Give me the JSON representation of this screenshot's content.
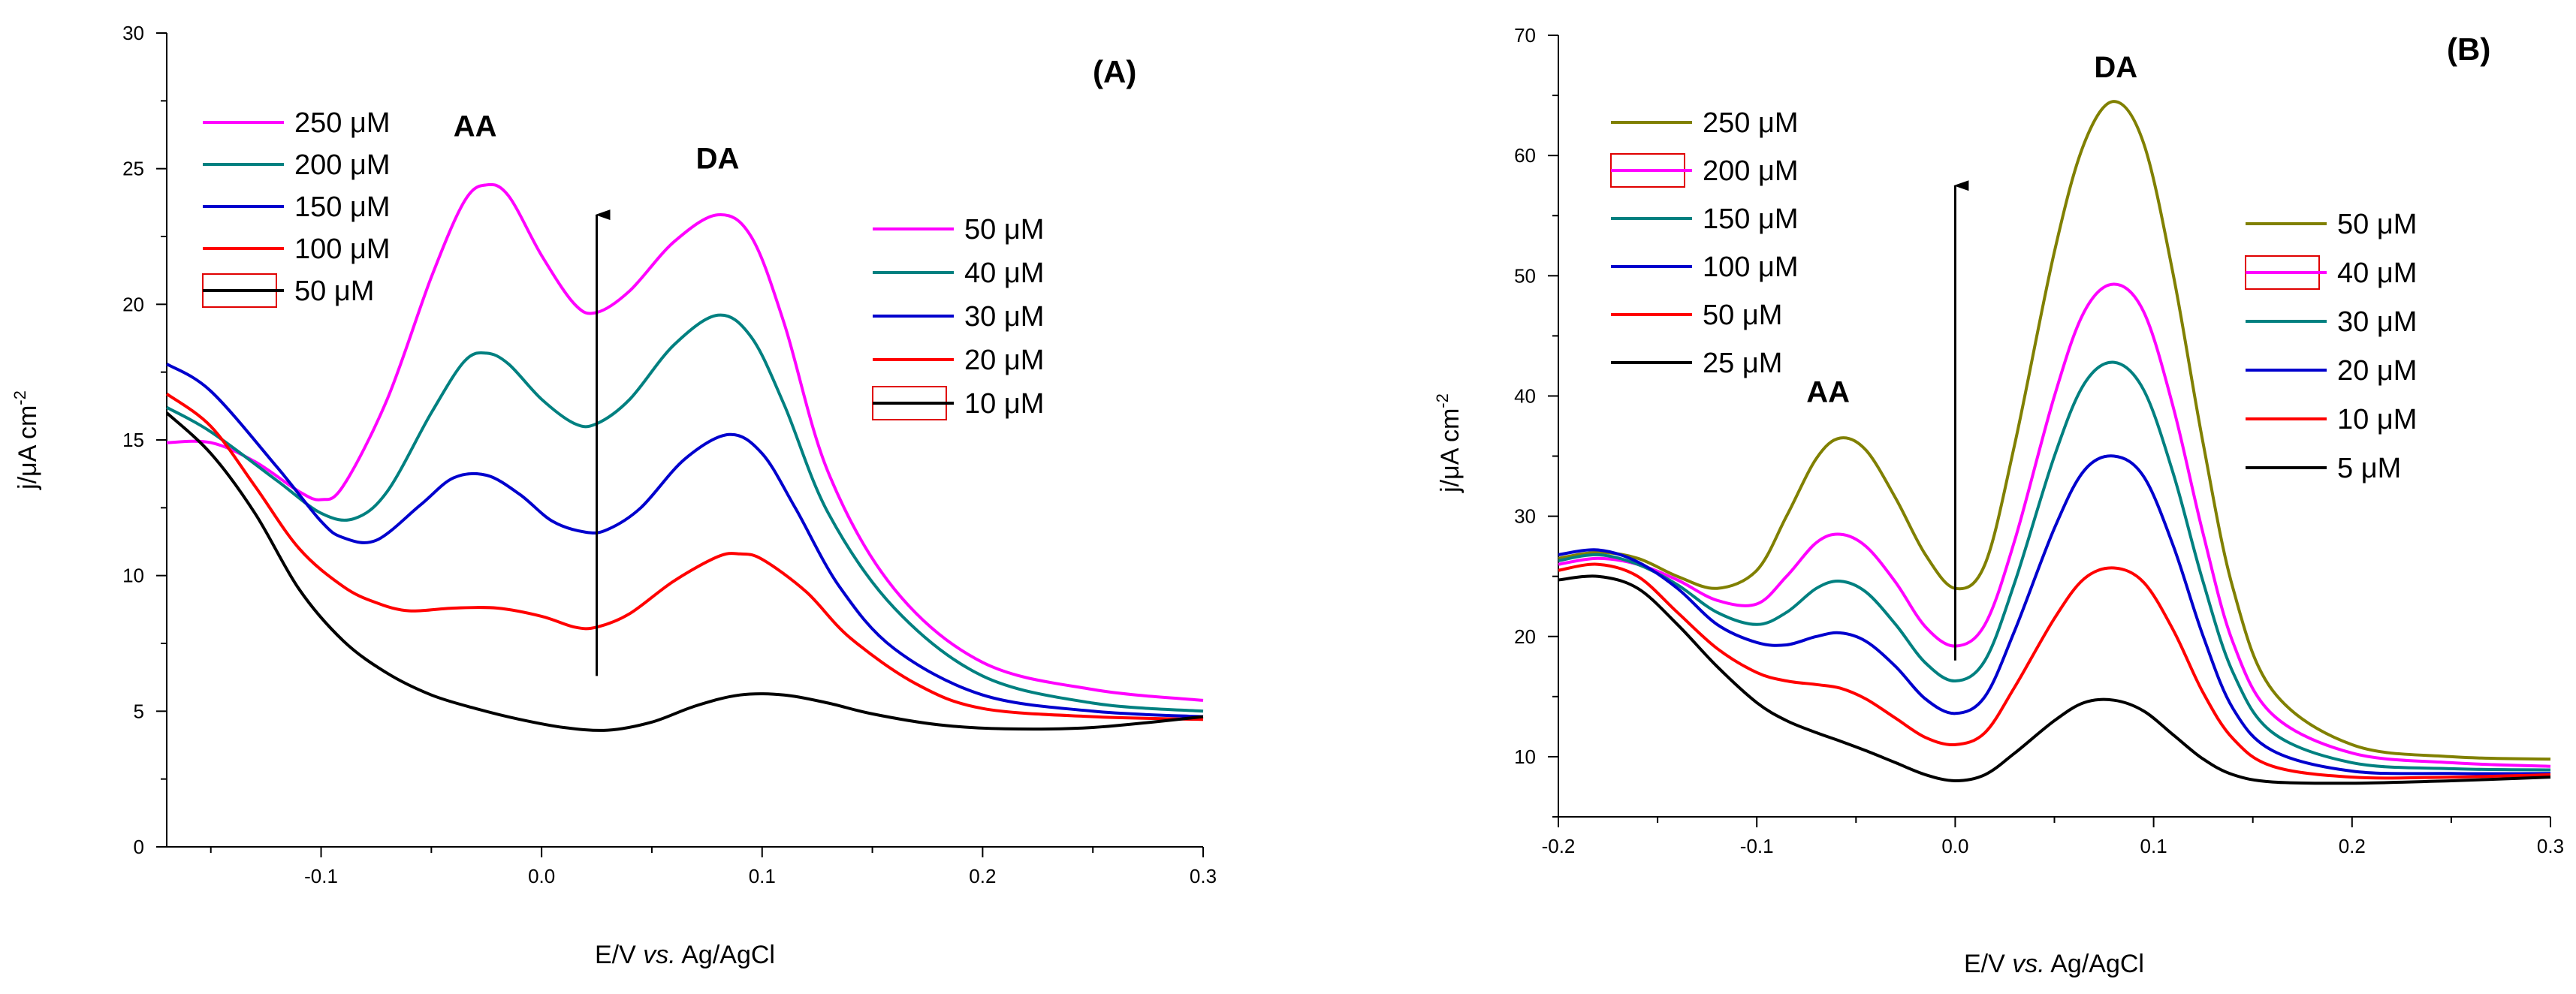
{
  "chart_data": [
    {
      "type": "line",
      "panel_label": "(A)",
      "xlabel_parts": [
        "E/V ",
        "vs.",
        " Ag/AgCl"
      ],
      "ylabel_parts": [
        "j/μA cm",
        "-2"
      ],
      "xlim": [
        -0.17,
        0.3
      ],
      "ylim": [
        0,
        30
      ],
      "xticks": [
        -0.1,
        0.0,
        0.1,
        0.2,
        0.3
      ],
      "xtick_labels": [
        "-0.1",
        "0.0",
        "0.1",
        "0.2",
        "0.3"
      ],
      "yticks": [
        0,
        5,
        10,
        15,
        20,
        25,
        30
      ],
      "ytick_labels": [
        "0",
        "5",
        "10",
        "15",
        "20",
        "25",
        "30"
      ],
      "annotations": [
        {
          "text": "AA",
          "x": -0.04,
          "y": 26.2
        },
        {
          "text": "DA",
          "x": 0.07,
          "y": 25.0
        }
      ],
      "arrow": {
        "x": 0.025,
        "y_from": 6.3,
        "y_to": 23.3
      },
      "legend_left": [
        "250 μM",
        "200 μM",
        "150 μM",
        "100 μM",
        "50 μM"
      ],
      "legend_right": [
        "50 μM",
        "40 μM",
        "30 μM",
        "20 μM",
        "10 μM"
      ],
      "series": [
        {
          "color": "#ff00ff",
          "x": [
            -0.17,
            -0.15,
            -0.13,
            -0.11,
            -0.1,
            -0.09,
            -0.07,
            -0.05,
            -0.035,
            -0.025,
            -0.015,
            0.0,
            0.015,
            0.025,
            0.04,
            0.06,
            0.08,
            0.095,
            0.11,
            0.13,
            0.16,
            0.2,
            0.25,
            0.3
          ],
          "y": [
            14.9,
            14.9,
            14.2,
            13.1,
            12.8,
            13.3,
            16.5,
            21.0,
            23.8,
            24.4,
            24.0,
            21.8,
            20.0,
            19.7,
            20.5,
            22.3,
            23.3,
            22.5,
            19.3,
            13.8,
            9.5,
            6.8,
            5.8,
            5.4
          ]
        },
        {
          "color": "#008080",
          "x": [
            -0.17,
            -0.15,
            -0.12,
            -0.1,
            -0.085,
            -0.07,
            -0.05,
            -0.035,
            -0.025,
            -0.015,
            0.0,
            0.015,
            0.025,
            0.04,
            0.06,
            0.08,
            0.095,
            0.11,
            0.13,
            0.16,
            0.2,
            0.25,
            0.3
          ],
          "y": [
            16.2,
            15.3,
            13.5,
            12.3,
            12.1,
            13.1,
            16.0,
            17.9,
            18.2,
            17.8,
            16.5,
            15.6,
            15.6,
            16.5,
            18.5,
            19.6,
            18.8,
            16.3,
            12.3,
            8.8,
            6.3,
            5.3,
            5.0
          ]
        },
        {
          "color": "#0000cd",
          "x": [
            -0.17,
            -0.15,
            -0.12,
            -0.1,
            -0.09,
            -0.075,
            -0.055,
            -0.04,
            -0.025,
            -0.01,
            0.005,
            0.02,
            0.03,
            0.045,
            0.065,
            0.085,
            0.1,
            0.115,
            0.135,
            0.16,
            0.2,
            0.25,
            0.3
          ],
          "y": [
            17.8,
            16.8,
            14.0,
            12.0,
            11.4,
            11.3,
            12.6,
            13.6,
            13.7,
            13.0,
            12.0,
            11.6,
            11.7,
            12.5,
            14.3,
            15.2,
            14.5,
            12.5,
            9.6,
            7.3,
            5.6,
            5.0,
            4.8
          ]
        },
        {
          "color": "#ff0000",
          "x": [
            -0.17,
            -0.15,
            -0.13,
            -0.11,
            -0.09,
            -0.075,
            -0.06,
            -0.04,
            -0.02,
            0.0,
            0.015,
            0.025,
            0.04,
            0.06,
            0.08,
            0.09,
            0.1,
            0.12,
            0.14,
            0.17,
            0.2,
            0.25,
            0.3
          ],
          "y": [
            16.7,
            15.5,
            13.3,
            11.0,
            9.6,
            9.0,
            8.7,
            8.8,
            8.8,
            8.5,
            8.1,
            8.1,
            8.6,
            9.8,
            10.7,
            10.8,
            10.6,
            9.4,
            7.7,
            6.0,
            5.1,
            4.8,
            4.7
          ]
        },
        {
          "color": "#000000",
          "x": [
            -0.17,
            -0.15,
            -0.13,
            -0.11,
            -0.09,
            -0.07,
            -0.05,
            -0.03,
            -0.01,
            0.01,
            0.03,
            0.05,
            0.07,
            0.09,
            0.11,
            0.13,
            0.15,
            0.18,
            0.21,
            0.25,
            0.3
          ],
          "y": [
            16.0,
            14.5,
            12.3,
            9.5,
            7.6,
            6.4,
            5.6,
            5.1,
            4.7,
            4.4,
            4.3,
            4.6,
            5.2,
            5.6,
            5.6,
            5.3,
            4.9,
            4.5,
            4.35,
            4.4,
            4.8
          ]
        }
      ]
    },
    {
      "type": "line",
      "panel_label": "(B)",
      "xlabel_parts": [
        "E/V ",
        "vs.",
        " Ag/AgCl"
      ],
      "ylabel_parts": [
        "j/μA cm",
        "-2"
      ],
      "xlim": [
        -0.2,
        0.3
      ],
      "ylim": [
        5,
        70
      ],
      "xticks": [
        -0.2,
        -0.1,
        0.0,
        0.1,
        0.2,
        0.3
      ],
      "xtick_labels": [
        "-0.2",
        "-0.1",
        "0.0",
        "0.1",
        "0.2",
        "0.3"
      ],
      "yticks": [
        10,
        20,
        30,
        40,
        50,
        60,
        70
      ],
      "ytick_labels": [
        "10",
        "20",
        "30",
        "40",
        "50",
        "60",
        "70"
      ],
      "annotations": [
        {
          "text": "AA",
          "x": -0.075,
          "y": 39.5
        },
        {
          "text": "DA",
          "x": 0.07,
          "y": 66.5
        }
      ],
      "arrow": {
        "x": 0.0,
        "y_from": 18.0,
        "y_to": 57.5
      },
      "legend_left": [
        "250 μM",
        "200 μM",
        "150 μM",
        "100 μM",
        "50 μM",
        "25 μM"
      ],
      "legend_right": [
        "50 μM",
        "40 μM",
        "30 μM",
        "20 μM",
        "10 μM",
        "5 μM"
      ],
      "series": [
        {
          "color": "#808000",
          "x": [
            -0.2,
            -0.18,
            -0.16,
            -0.14,
            -0.12,
            -0.1,
            -0.085,
            -0.07,
            -0.058,
            -0.045,
            -0.03,
            -0.015,
            0.0,
            0.015,
            0.03,
            0.05,
            0.065,
            0.08,
            0.095,
            0.11,
            0.125,
            0.14,
            0.16,
            0.2,
            0.25,
            0.3
          ],
          "y": [
            26.5,
            27.0,
            26.5,
            25.0,
            24.0,
            25.5,
            30.0,
            34.8,
            36.5,
            35.5,
            31.5,
            26.8,
            24.0,
            26.0,
            36.0,
            52.0,
            61.0,
            64.5,
            61.0,
            50.0,
            36.0,
            24.0,
            15.5,
            11.0,
            10.0,
            9.8
          ]
        },
        {
          "color": "#ff00ff",
          "x": [
            -0.2,
            -0.18,
            -0.16,
            -0.14,
            -0.12,
            -0.1,
            -0.085,
            -0.07,
            -0.058,
            -0.045,
            -0.03,
            -0.015,
            0.0,
            0.015,
            0.03,
            0.05,
            0.065,
            0.08,
            0.095,
            0.11,
            0.125,
            0.14,
            0.16,
            0.2,
            0.25,
            0.3
          ],
          "y": [
            26.0,
            26.5,
            26.0,
            24.7,
            23.0,
            22.7,
            25.0,
            27.8,
            28.5,
            27.5,
            24.5,
            20.8,
            19.2,
            21.0,
            28.0,
            40.0,
            47.0,
            49.3,
            47.0,
            39.0,
            28.5,
            19.5,
            13.5,
            10.3,
            9.5,
            9.2
          ]
        },
        {
          "color": "#008080",
          "x": [
            -0.2,
            -0.18,
            -0.16,
            -0.14,
            -0.12,
            -0.1,
            -0.085,
            -0.07,
            -0.058,
            -0.045,
            -0.03,
            -0.015,
            0.0,
            0.015,
            0.03,
            0.05,
            0.065,
            0.08,
            0.095,
            0.11,
            0.125,
            0.14,
            0.16,
            0.2,
            0.25,
            0.3
          ],
          "y": [
            26.3,
            26.8,
            26.0,
            24.3,
            22.0,
            21.0,
            22.0,
            24.0,
            24.6,
            23.7,
            21.0,
            17.8,
            16.3,
            18.0,
            24.5,
            35.0,
            41.0,
            42.8,
            40.5,
            33.5,
            24.5,
            17.0,
            12.0,
            9.5,
            9.0,
            8.9
          ]
        },
        {
          "color": "#0000cd",
          "x": [
            -0.2,
            -0.18,
            -0.16,
            -0.14,
            -0.12,
            -0.1,
            -0.085,
            -0.07,
            -0.058,
            -0.045,
            -0.03,
            -0.015,
            0.0,
            0.015,
            0.03,
            0.05,
            0.065,
            0.08,
            0.095,
            0.11,
            0.125,
            0.14,
            0.16,
            0.2,
            0.25,
            0.3
          ],
          "y": [
            26.8,
            27.2,
            26.2,
            24.0,
            21.0,
            19.5,
            19.3,
            20.0,
            20.3,
            19.6,
            17.5,
            14.8,
            13.6,
            15.0,
            20.5,
            29.0,
            33.8,
            35.0,
            33.3,
            27.5,
            20.0,
            14.0,
            10.5,
            8.8,
            8.6,
            8.6
          ]
        },
        {
          "color": "#ff0000",
          "x": [
            -0.2,
            -0.18,
            -0.16,
            -0.14,
            -0.12,
            -0.1,
            -0.085,
            -0.07,
            -0.058,
            -0.045,
            -0.03,
            -0.015,
            0.0,
            0.015,
            0.03,
            0.05,
            0.065,
            0.08,
            0.095,
            0.11,
            0.125,
            0.14,
            0.16,
            0.2,
            0.25,
            0.3
          ],
          "y": [
            25.5,
            26.0,
            25.0,
            22.0,
            19.0,
            17.0,
            16.3,
            16.0,
            15.7,
            14.8,
            13.2,
            11.6,
            11.0,
            12.0,
            15.8,
            21.5,
            24.8,
            25.7,
            24.5,
            20.5,
            15.3,
            11.5,
            9.2,
            8.3,
            8.3,
            8.5
          ]
        },
        {
          "color": "#000000",
          "x": [
            -0.2,
            -0.18,
            -0.16,
            -0.14,
            -0.12,
            -0.1,
            -0.085,
            -0.07,
            -0.058,
            -0.045,
            -0.03,
            -0.015,
            0.0,
            0.015,
            0.03,
            0.05,
            0.065,
            0.08,
            0.095,
            0.11,
            0.125,
            0.14,
            0.16,
            0.2,
            0.25,
            0.3
          ],
          "y": [
            24.7,
            25.0,
            24.0,
            21.0,
            17.5,
            14.5,
            13.0,
            12.0,
            11.3,
            10.5,
            9.5,
            8.5,
            8.0,
            8.5,
            10.3,
            13.0,
            14.5,
            14.7,
            13.8,
            11.8,
            9.8,
            8.5,
            7.9,
            7.8,
            8.0,
            8.3
          ]
        }
      ]
    }
  ]
}
